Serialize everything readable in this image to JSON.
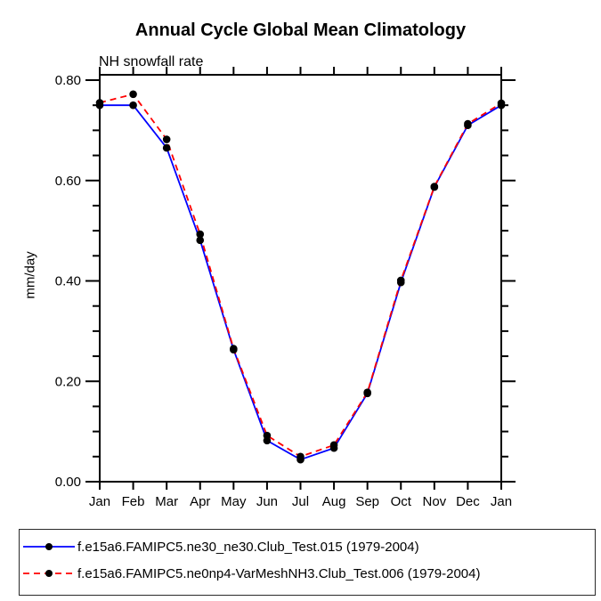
{
  "chart_data": {
    "type": "line",
    "title": "Annual Cycle Global Mean Climatology",
    "subtitle": "NH snowfall rate",
    "ylabel": "mm/day",
    "xlabel": "",
    "categories": [
      "Jan",
      "Feb",
      "Mar",
      "Apr",
      "May",
      "Jun",
      "Jul",
      "Aug",
      "Sep",
      "Oct",
      "Nov",
      "Dec",
      "Jan"
    ],
    "ylim": [
      0.0,
      0.8
    ],
    "ytick_major": [
      0.0,
      0.2,
      0.4,
      0.6,
      0.8
    ],
    "ytick_labels": [
      "0.00",
      "0.20",
      "0.40",
      "0.60",
      "0.80"
    ],
    "ytick_minor_step": 0.05,
    "grid": false,
    "legend_position": "bottom",
    "axis_color": "#000000",
    "marker_shape": "circle",
    "series": [
      {
        "name": "f.e15a6.FAMIPC5.ne30_ne30.Club_Test.015 (1979-2004)",
        "color": "#0000ff",
        "line_style": "solid",
        "marker_color": "#000000",
        "values": [
          0.75,
          0.75,
          0.665,
          0.481,
          0.263,
          0.082,
          0.044,
          0.067,
          0.176,
          0.397,
          0.587,
          0.71,
          0.75
        ]
      },
      {
        "name": "f.e15a6.FAMIPC5.ne0np4-VarMeshNH3.Club_Test.006 (1979-2004)",
        "color": "#ff0000",
        "line_style": "dashed",
        "marker_color": "#000000",
        "values": [
          0.755,
          0.772,
          0.682,
          0.493,
          0.265,
          0.092,
          0.05,
          0.073,
          0.178,
          0.401,
          0.588,
          0.713,
          0.754
        ]
      }
    ]
  }
}
